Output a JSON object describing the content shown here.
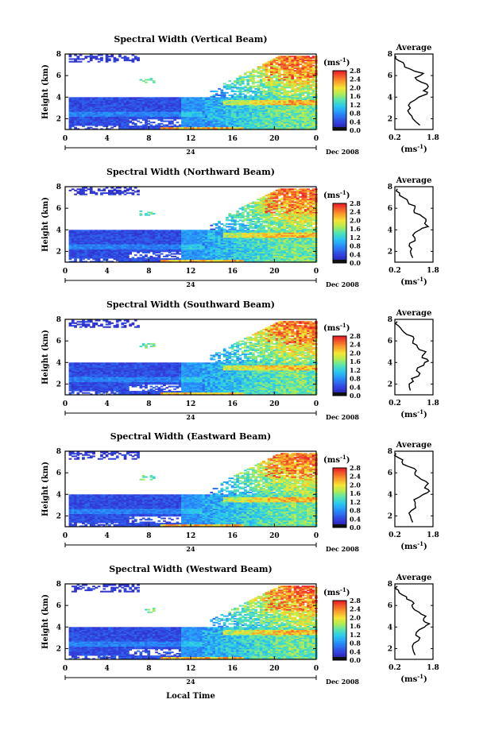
{
  "figure": {
    "xlabel": "Local Time",
    "date_label": "Dec 2008",
    "day_label": "24",
    "ylabel": "Height (km)",
    "colorbar_unit": "(ms",
    "colorbar_unit_exp": "-1",
    "colorbar_unit_close": ")",
    "avg_title": "Average",
    "avg_xlabel": "(ms",
    "avg_xlabel_exp": "-1",
    "avg_xlabel_close": ")"
  },
  "chart_data": [
    {
      "type": "heatmap",
      "title": "Spectral Width (Vertical Beam)",
      "xlabel": "Local Time",
      "ylabel": "Height (km)",
      "x_ticks": [
        "0",
        "4",
        "8",
        "12",
        "16",
        "20",
        "0"
      ],
      "y_ticks": [
        "2",
        "4",
        "6",
        "8"
      ],
      "xlim": [
        0,
        24
      ],
      "ylim": [
        1,
        8
      ],
      "colorbar": {
        "label": "(ms-1)",
        "ticks": [
          "0.0",
          "0.4",
          "0.8",
          "1.2",
          "1.6",
          "2.0",
          "2.4",
          "2.8"
        ],
        "range": [
          0,
          2.8
        ]
      },
      "average_profile": {
        "title": "Average",
        "xlabel": "(ms-1)",
        "x_ticks": [
          "0.2",
          "1.8"
        ],
        "y_ticks": [
          "2",
          "4",
          "6",
          "8"
        ],
        "xlim": [
          0.2,
          1.8
        ],
        "ylim": [
          1,
          8
        ],
        "height": [
          1.4,
          2,
          2.5,
          3,
          3.5,
          4,
          4.3,
          4.6,
          5,
          5.4,
          5.8,
          6.2,
          6.6,
          7,
          7.4,
          7.8
        ],
        "width": [
          1.25,
          0.95,
          0.8,
          0.85,
          0.85,
          1.2,
          1.55,
          1.4,
          1.6,
          1.3,
          1.05,
          1.4,
          0.85,
          0.6,
          0.35,
          0.25
        ]
      }
    },
    {
      "type": "heatmap",
      "title": "Spectral Width (Northward Beam)",
      "xlabel": "Local Time",
      "ylabel": "Height (km)",
      "x_ticks": [
        "0",
        "4",
        "8",
        "12",
        "16",
        "20",
        "0"
      ],
      "y_ticks": [
        "2",
        "4",
        "6",
        "8"
      ],
      "xlim": [
        0,
        24
      ],
      "ylim": [
        1,
        8
      ],
      "colorbar": {
        "label": "(ms-1)",
        "ticks": [
          "0.0",
          "0.4",
          "0.8",
          "1.2",
          "1.6",
          "2.0",
          "2.4",
          "2.8"
        ],
        "range": [
          0,
          2.8
        ]
      },
      "average_profile": {
        "title": "Average",
        "xlabel": "(ms-1)",
        "x_ticks": [
          "0.2",
          "1.8"
        ],
        "y_ticks": [
          "2",
          "4",
          "6",
          "8"
        ],
        "xlim": [
          0.2,
          1.8
        ],
        "ylim": [
          1,
          8
        ],
        "height": [
          1.4,
          2,
          2.5,
          3,
          3.5,
          4,
          4.3,
          4.6,
          5,
          5.4,
          5.8,
          6.2,
          6.6,
          7,
          7.4,
          7.8
        ],
        "width": [
          0.95,
          0.85,
          0.8,
          1.05,
          0.95,
          1.25,
          1.6,
          1.45,
          1.5,
          1.25,
          1.0,
          1.05,
          0.75,
          0.55,
          0.4,
          0.3
        ]
      }
    },
    {
      "type": "heatmap",
      "title": "Spectral Width (Southward Beam)",
      "xlabel": "Local Time",
      "ylabel": "Height (km)",
      "x_ticks": [
        "0",
        "4",
        "8",
        "12",
        "16",
        "20",
        "0"
      ],
      "y_ticks": [
        "2",
        "4",
        "6",
        "8"
      ],
      "xlim": [
        0,
        24
      ],
      "ylim": [
        1,
        8
      ],
      "colorbar": {
        "label": "(ms-1)",
        "ticks": [
          "0.0",
          "0.4",
          "0.8",
          "1.2",
          "1.6",
          "2.0",
          "2.4",
          "2.8"
        ],
        "range": [
          0,
          2.8
        ]
      },
      "average_profile": {
        "title": "Average",
        "xlabel": "(ms-1)",
        "x_ticks": [
          "0.2",
          "1.8"
        ],
        "y_ticks": [
          "2",
          "4",
          "6",
          "8"
        ],
        "xlim": [
          0.2,
          1.8
        ],
        "ylim": [
          1,
          8
        ],
        "height": [
          1.4,
          2,
          2.5,
          3,
          3.5,
          4,
          4.3,
          4.6,
          5,
          5.4,
          5.8,
          6.2,
          6.6,
          7,
          7.4,
          7.8
        ],
        "width": [
          0.85,
          0.8,
          0.9,
          1.25,
          1.15,
          1.45,
          1.55,
          1.35,
          1.5,
          1.15,
          0.95,
          1.0,
          0.7,
          0.5,
          0.35,
          0.3
        ]
      }
    },
    {
      "type": "heatmap",
      "title": "Spectral Width (Eastward Beam)",
      "xlabel": "Local Time",
      "ylabel": "Height (km)",
      "x_ticks": [
        "0",
        "4",
        "8",
        "12",
        "16",
        "20",
        "0"
      ],
      "y_ticks": [
        "2",
        "4",
        "6",
        "8"
      ],
      "xlim": [
        0,
        24
      ],
      "ylim": [
        1,
        8
      ],
      "colorbar": {
        "label": "(ms-1)",
        "ticks": [
          "0.0",
          "0.4",
          "0.8",
          "1.2",
          "1.6",
          "2.0",
          "2.4",
          "2.8"
        ],
        "range": [
          0,
          2.8
        ]
      },
      "average_profile": {
        "title": "Average",
        "xlabel": "(ms-1)",
        "x_ticks": [
          "0.2",
          "1.8"
        ],
        "y_ticks": [
          "2",
          "4",
          "6",
          "8"
        ],
        "xlim": [
          0.2,
          1.8
        ],
        "ylim": [
          1,
          8
        ],
        "height": [
          1.4,
          2,
          2.5,
          3,
          3.5,
          4,
          4.3,
          4.6,
          5,
          5.4,
          5.8,
          6.2,
          6.6,
          7,
          7.4,
          7.8
        ],
        "width": [
          0.95,
          0.85,
          0.9,
          1.05,
          1.0,
          1.4,
          1.65,
          1.45,
          1.6,
          1.3,
          1.05,
          1.1,
          0.75,
          0.5,
          0.35,
          0.25
        ]
      }
    },
    {
      "type": "heatmap",
      "title": "Spectral Width (Westward Beam)",
      "xlabel": "Local Time",
      "ylabel": "Height (km)",
      "x_ticks": [
        "0",
        "4",
        "8",
        "12",
        "16",
        "20",
        "0"
      ],
      "y_ticks": [
        "2",
        "4",
        "6",
        "8"
      ],
      "xlim": [
        0,
        24
      ],
      "ylim": [
        1,
        8
      ],
      "colorbar": {
        "label": "(ms-1)",
        "ticks": [
          "0.0",
          "0.4",
          "0.8",
          "1.2",
          "1.6",
          "2.0",
          "2.4",
          "2.8"
        ],
        "range": [
          0,
          2.8
        ]
      },
      "average_profile": {
        "title": "Average",
        "xlabel": "(ms-1)",
        "x_ticks": [
          "0.2",
          "1.8"
        ],
        "y_ticks": [
          "2",
          "4",
          "6",
          "8"
        ],
        "xlim": [
          0.2,
          1.8
        ],
        "ylim": [
          1,
          8
        ],
        "height": [
          1.4,
          2,
          2.5,
          3,
          3.5,
          4,
          4.3,
          4.6,
          5,
          5.4,
          5.8,
          6.2,
          6.6,
          7,
          7.4,
          7.8
        ],
        "width": [
          1.05,
          0.95,
          1.0,
          1.25,
          1.1,
          1.45,
          1.65,
          1.4,
          1.5,
          1.2,
          0.95,
          1.0,
          0.7,
          0.5,
          0.35,
          0.3
        ]
      }
    }
  ]
}
